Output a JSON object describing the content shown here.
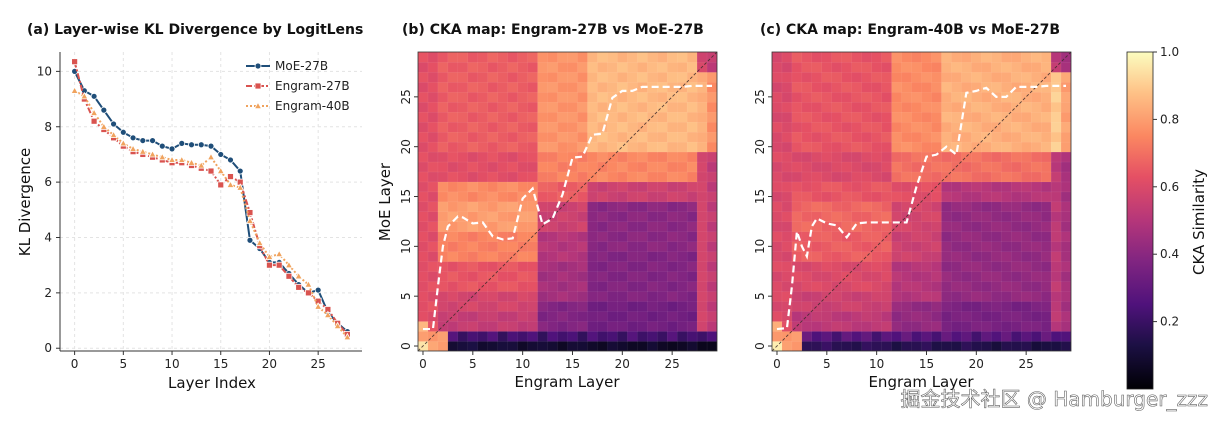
{
  "watermark": "掘金技术社区 @ Hamburger_zzz",
  "chart_data": [
    {
      "type": "line",
      "title": "(a) Layer-wise KL Divergence by LogitLens",
      "xlabel": "Layer Index",
      "ylabel": "KL Divergence",
      "xlim": [
        -1.5,
        29.5
      ],
      "ylim": [
        -0.1,
        10.7
      ],
      "xticks": [
        0,
        5,
        10,
        15,
        20,
        25
      ],
      "yticks": [
        0,
        2,
        4,
        6,
        8,
        10
      ],
      "grid": true,
      "legend": "top-right",
      "x": [
        0,
        1,
        2,
        3,
        4,
        5,
        6,
        7,
        8,
        9,
        10,
        11,
        12,
        13,
        14,
        15,
        16,
        17,
        18,
        19,
        20,
        21,
        22,
        23,
        24,
        25,
        26,
        27,
        28
      ],
      "series": [
        {
          "name": "MoE-27B",
          "color": "#1f4e79",
          "marker": "circle",
          "dash": "solid",
          "values": [
            10.0,
            9.3,
            9.1,
            8.6,
            8.1,
            7.8,
            7.6,
            7.5,
            7.5,
            7.3,
            7.2,
            7.4,
            7.35,
            7.35,
            7.3,
            7.0,
            6.8,
            6.4,
            3.9,
            3.6,
            3.1,
            3.1,
            2.7,
            2.3,
            2.0,
            2.1,
            1.3,
            0.9,
            0.6
          ]
        },
        {
          "name": "Engram-27B",
          "color": "#d9534f",
          "marker": "square",
          "dash": "dashdot",
          "values": [
            10.35,
            9.0,
            8.2,
            7.9,
            7.6,
            7.3,
            7.1,
            7.0,
            6.9,
            6.8,
            6.7,
            6.7,
            6.6,
            6.5,
            6.4,
            5.9,
            6.2,
            6.0,
            4.9,
            3.7,
            3.0,
            3.0,
            2.6,
            2.2,
            2.0,
            1.7,
            1.4,
            0.9,
            0.5
          ]
        },
        {
          "name": "Engram-40B",
          "color": "#f0a35e",
          "marker": "triangle",
          "dash": "dotted",
          "values": [
            9.3,
            9.1,
            8.5,
            8.0,
            7.7,
            7.4,
            7.2,
            7.1,
            7.0,
            6.9,
            6.8,
            6.8,
            6.7,
            6.6,
            6.9,
            6.4,
            5.9,
            5.8,
            4.6,
            3.8,
            3.3,
            3.4,
            3.0,
            2.6,
            2.3,
            1.5,
            1.2,
            0.8,
            0.4
          ]
        }
      ]
    },
    {
      "type": "heatmap",
      "title": "(b) CKA map: Engram-27B vs MoE-27B",
      "xlabel": "Engram Layer",
      "ylabel": "MoE Layer",
      "xticks": [
        0,
        5,
        10,
        15,
        20,
        25
      ],
      "yticks": [
        0,
        5,
        10,
        15,
        20,
        25
      ],
      "n": 30,
      "diagonal": true,
      "argmax_path": {
        "x": [
          0,
          1,
          1.5,
          2,
          2.5,
          3,
          3.5,
          4,
          5,
          6,
          7,
          8,
          9,
          10,
          11,
          12,
          13,
          14,
          15,
          16,
          17,
          18,
          19,
          20,
          21,
          22,
          23,
          24,
          25,
          26,
          27,
          28,
          29
        ],
        "y": [
          1.7,
          1.7,
          6,
          10,
          12,
          12.5,
          13,
          12.9,
          12.3,
          12.4,
          11,
          10.7,
          10.8,
          14.8,
          15.8,
          12.2,
          12.8,
          15.2,
          18.9,
          19,
          21.2,
          21.3,
          24.9,
          25.6,
          25.6,
          26,
          26,
          26,
          26,
          26,
          26.1,
          26.1,
          26.1
        ]
      }
    },
    {
      "type": "heatmap",
      "title": "(c) CKA map: Engram-40B vs MoE-27B",
      "xlabel": "Engram Layer",
      "ylabel": "",
      "xticks": [
        0,
        5,
        10,
        15,
        20,
        25
      ],
      "yticks": [
        0,
        5,
        10,
        15,
        20,
        25
      ],
      "n": 30,
      "diagonal": true,
      "argmax_path": {
        "x": [
          0,
          1,
          1.5,
          2,
          2.5,
          3,
          3.5,
          4,
          5,
          6,
          7,
          8,
          9,
          10,
          11,
          12,
          13,
          14,
          15,
          16,
          17,
          18,
          19,
          20,
          21,
          22,
          23,
          24,
          25,
          26,
          27,
          28,
          29
        ],
        "y": [
          1.7,
          1.8,
          6,
          11.5,
          10,
          9,
          12,
          12.8,
          12.3,
          12.1,
          10.9,
          12.3,
          12.4,
          12.4,
          12.4,
          12.4,
          12.4,
          16,
          19,
          19.2,
          20,
          19.2,
          25.4,
          25.6,
          25.9,
          25,
          25,
          26,
          26,
          26,
          26.1,
          26.1,
          26.1
        ]
      }
    },
    {
      "type": "colorbar",
      "label": "CKA Similarity",
      "range": [
        0.0,
        1.0
      ],
      "ticks": [
        "0.2",
        "0.4",
        "0.6",
        "0.8",
        "1.0"
      ]
    }
  ]
}
